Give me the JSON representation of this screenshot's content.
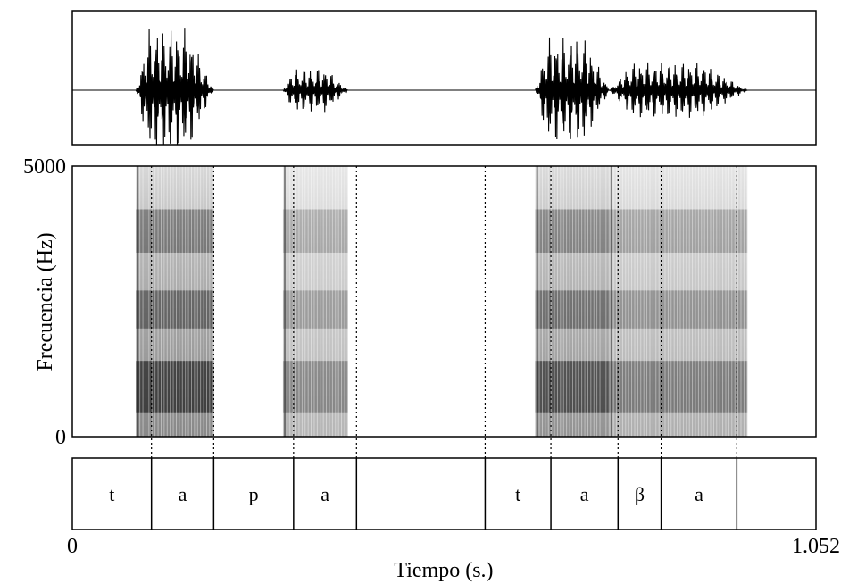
{
  "chart_data": {
    "type": "spectrogram",
    "panels": [
      "waveform",
      "spectrogram",
      "segmentation"
    ],
    "xlabel": "Tiempo (s.)",
    "ylabel": "Frecuencia (Hz)",
    "xlim": [
      0,
      1.052
    ],
    "ylim": [
      0,
      5000
    ],
    "x_tick_labels": [
      "0",
      "1.052"
    ],
    "y_tick_labels": [
      "0",
      "5000"
    ],
    "segments": [
      {
        "label": "t",
        "start": 0.0,
        "end": 0.112
      },
      {
        "label": "a",
        "start": 0.112,
        "end": 0.2
      },
      {
        "label": "p",
        "start": 0.2,
        "end": 0.313
      },
      {
        "label": "a",
        "start": 0.313,
        "end": 0.402
      },
      {
        "label": "",
        "start": 0.402,
        "end": 0.584
      },
      {
        "label": "t",
        "start": 0.584,
        "end": 0.677
      },
      {
        "label": "a",
        "start": 0.677,
        "end": 0.772
      },
      {
        "label": "β",
        "start": 0.772,
        "end": 0.833
      },
      {
        "label": "a",
        "start": 0.833,
        "end": 0.94
      },
      {
        "label": "",
        "start": 0.94,
        "end": 1.052
      }
    ],
    "voiced_regions": [
      {
        "start": 0.09,
        "end": 0.2,
        "amplitude": 1.0
      },
      {
        "start": 0.298,
        "end": 0.39,
        "amplitude": 0.35
      },
      {
        "start": 0.655,
        "end": 0.76,
        "amplitude": 0.85
      },
      {
        "start": 0.76,
        "end": 0.955,
        "amplitude": 0.45
      }
    ],
    "formant_bands_hz": [
      {
        "low": 450,
        "high": 1400,
        "intensity": 0.95
      },
      {
        "low": 2000,
        "high": 2700,
        "intensity": 0.6
      },
      {
        "low": 3400,
        "high": 4200,
        "intensity": 0.5
      }
    ]
  }
}
